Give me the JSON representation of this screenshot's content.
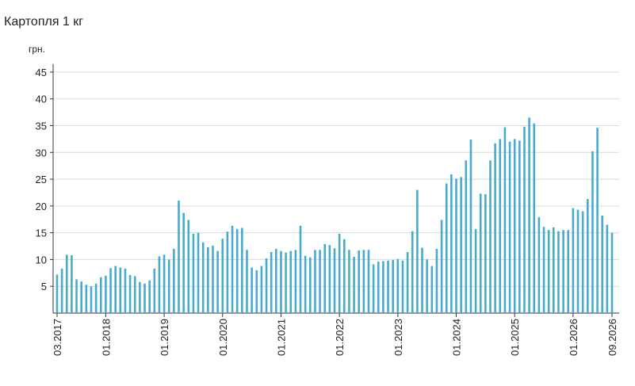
{
  "chart_data": {
    "type": "bar",
    "title": "Картопля 1 кг",
    "y_label": "грн.",
    "color": "#4aaacb",
    "categories": [
      "03.2017",
      null,
      null,
      null,
      null,
      null,
      null,
      null,
      null,
      null,
      "01.2018",
      null,
      null,
      null,
      null,
      null,
      null,
      null,
      null,
      null,
      null,
      null,
      "01.2019",
      null,
      null,
      null,
      null,
      null,
      null,
      null,
      null,
      null,
      null,
      null,
      "01.2020",
      null,
      null,
      null,
      null,
      null,
      null,
      null,
      null,
      null,
      null,
      null,
      "01.2021",
      null,
      null,
      null,
      null,
      null,
      null,
      null,
      null,
      null,
      null,
      null,
      "01.2022",
      null,
      null,
      null,
      null,
      null,
      null,
      null,
      null,
      null,
      null,
      null,
      "01.2023",
      null,
      null,
      null,
      null,
      null,
      null,
      null,
      null,
      null,
      null,
      null,
      "01.2024",
      null,
      null,
      null,
      null,
      null,
      null,
      null,
      null,
      null,
      null,
      null,
      "01.2025",
      null,
      null,
      null,
      null,
      null,
      null,
      null,
      null,
      null,
      null,
      null,
      "01.2026",
      null,
      null,
      null,
      null,
      null,
      null,
      null,
      "09.2026"
    ],
    "values": [
      7.2,
      8.3,
      10.9,
      10.8,
      6.3,
      5.9,
      5.3,
      5.0,
      5.5,
      6.7,
      7.0,
      8.4,
      8.8,
      8.5,
      8.3,
      7.1,
      6.9,
      5.8,
      5.5,
      6.1,
      8.3,
      10.6,
      10.9,
      10.0,
      12.0,
      21.0,
      18.7,
      17.4,
      14.8,
      15.0,
      13.2,
      12.3,
      12.6,
      11.6,
      13.9,
      15.2,
      16.3,
      15.7,
      15.9,
      11.8,
      8.5,
      8.0,
      8.8,
      10.2,
      11.4,
      12.0,
      11.6,
      11.3,
      11.6,
      11.8,
      16.3,
      10.7,
      10.4,
      11.8,
      11.8,
      12.9,
      12.7,
      12.1,
      14.8,
      13.8,
      11.8,
      10.5,
      11.7,
      11.8,
      11.8,
      9.1,
      9.6,
      9.7,
      9.8,
      9.9,
      10.1,
      9.8,
      11.4,
      15.3,
      23.0,
      12.2,
      10.0,
      8.8,
      12.0,
      17.4,
      24.2,
      25.9,
      25.1,
      25.4,
      28.5,
      32.4,
      15.7,
      22.3,
      22.2,
      28.5,
      31.7,
      32.5,
      34.7,
      32.0,
      32.5,
      32.2,
      34.8,
      36.5,
      35.4,
      17.9,
      16.1,
      15.5,
      16.0,
      15.3,
      15.5,
      15.5,
      19.6,
      19.3,
      19.0,
      21.3,
      30.2,
      34.6,
      18.2,
      16.5,
      15.0
    ],
    "ylim": [
      0,
      46.5
    ],
    "yticks": [
      5,
      10,
      15,
      20,
      25,
      30,
      35,
      40,
      45
    ],
    "grid": true
  }
}
